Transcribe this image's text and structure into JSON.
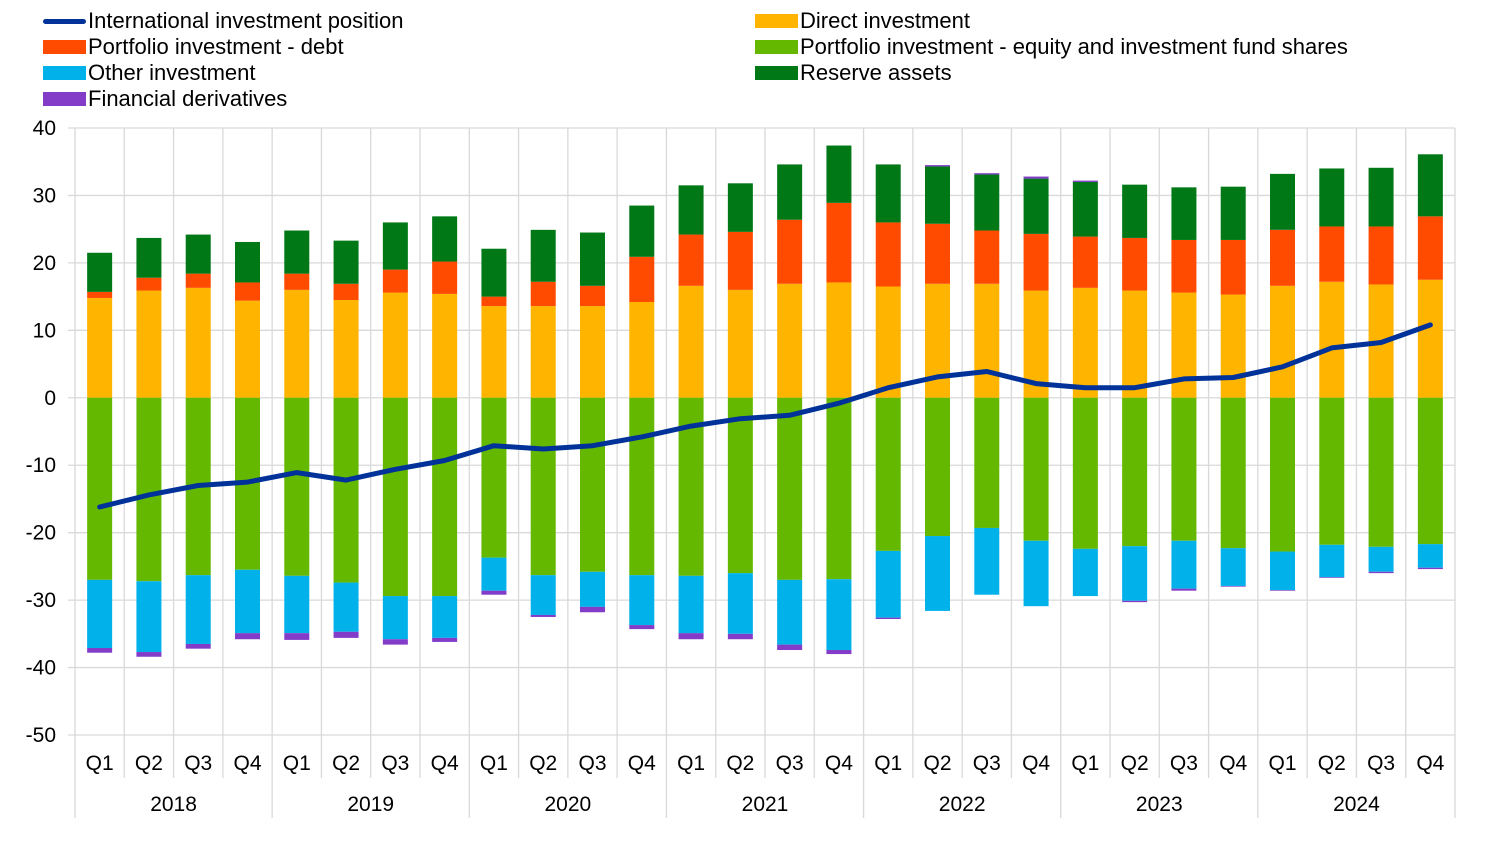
{
  "chart_data": {
    "type": "bar",
    "subtype": "stacked bar with line overlay",
    "title": "",
    "xlabel": "",
    "ylabel": "",
    "ylim": [
      -50,
      40
    ],
    "yticks": [
      40,
      30,
      20,
      10,
      0,
      -10,
      -20,
      -30,
      -40,
      -50
    ],
    "grid": true,
    "legend_position": "top",
    "quarter_labels": [
      "Q1",
      "Q2",
      "Q3",
      "Q4",
      "Q1",
      "Q2",
      "Q3",
      "Q4",
      "Q1",
      "Q2",
      "Q3",
      "Q4",
      "Q1",
      "Q2",
      "Q3",
      "Q4",
      "Q1",
      "Q2",
      "Q3",
      "Q4",
      "Q1",
      "Q2",
      "Q3",
      "Q4",
      "Q1",
      "Q2",
      "Q3",
      "Q4"
    ],
    "years": [
      "2018",
      "2019",
      "2020",
      "2021",
      "2022",
      "2023",
      "2024"
    ],
    "categories": [
      "2018 Q1",
      "2018 Q2",
      "2018 Q3",
      "2018 Q4",
      "2019 Q1",
      "2019 Q2",
      "2019 Q3",
      "2019 Q4",
      "2020 Q1",
      "2020 Q2",
      "2020 Q3",
      "2020 Q4",
      "2021 Q1",
      "2021 Q2",
      "2021 Q3",
      "2021 Q4",
      "2022 Q1",
      "2022 Q2",
      "2022 Q3",
      "2022 Q4",
      "2023 Q1",
      "2023 Q2",
      "2023 Q3",
      "2023 Q4",
      "2024 Q1",
      "2024 Q2",
      "2024 Q3",
      "2024 Q4"
    ],
    "series": [
      {
        "name": "Direct investment",
        "kind": "bar",
        "color": "#FFB400",
        "values": [
          14.8,
          15.9,
          16.3,
          14.4,
          16.0,
          14.5,
          15.6,
          15.4,
          13.6,
          13.6,
          13.6,
          14.2,
          16.6,
          16.0,
          16.9,
          17.1,
          16.5,
          16.9,
          16.9,
          15.9,
          16.3,
          15.9,
          15.6,
          15.3,
          16.6,
          17.2,
          16.8,
          17.5
        ]
      },
      {
        "name": "Portfolio investment - debt",
        "kind": "bar",
        "color": "#FF4B00",
        "values": [
          0.9,
          1.9,
          2.1,
          2.7,
          2.4,
          2.4,
          3.4,
          4.8,
          1.4,
          3.6,
          3.0,
          6.7,
          7.6,
          8.6,
          9.5,
          11.8,
          9.5,
          8.9,
          7.9,
          8.4,
          7.6,
          7.8,
          7.8,
          8.1,
          8.3,
          8.2,
          8.6,
          9.4
        ]
      },
      {
        "name": "Reserve assets",
        "kind": "bar",
        "color": "#007816",
        "values": [
          5.8,
          5.9,
          5.8,
          6.0,
          6.4,
          6.4,
          7.0,
          6.7,
          7.1,
          7.7,
          7.9,
          7.6,
          7.3,
          7.2,
          8.2,
          8.5,
          8.6,
          8.5,
          8.3,
          8.2,
          8.1,
          7.9,
          7.8,
          7.9,
          8.3,
          8.6,
          8.7,
          9.2
        ]
      },
      {
        "name": "Portfolio investment - equity and investment fund shares",
        "kind": "bar",
        "color": "#65B800",
        "values": [
          -27.0,
          -27.2,
          -26.3,
          -25.5,
          -26.4,
          -27.4,
          -29.4,
          -29.4,
          -23.7,
          -26.3,
          -25.8,
          -26.3,
          -26.4,
          -26.0,
          -27.0,
          -26.9,
          -22.7,
          -20.5,
          -19.3,
          -21.2,
          -22.4,
          -22.0,
          -21.2,
          -22.3,
          -22.8,
          -21.8,
          -22.1,
          -21.7
        ]
      },
      {
        "name": "Other investment",
        "kind": "bar",
        "color": "#00B1EA",
        "values": [
          -10.1,
          -10.5,
          -10.2,
          -9.4,
          -8.5,
          -7.3,
          -6.4,
          -6.2,
          -4.9,
          -5.9,
          -5.2,
          -7.4,
          -8.5,
          -9.0,
          -9.6,
          -10.5,
          -9.9,
          -11.1,
          -9.9,
          -9.7,
          -7.0,
          -8.1,
          -7.1,
          -5.6,
          -5.7,
          -4.8,
          -3.7,
          -3.5
        ]
      },
      {
        "name": "Financial derivatives",
        "kind": "bar",
        "color": "#823CC8",
        "values": [
          -0.7,
          -0.7,
          -0.7,
          -0.9,
          -1.0,
          -0.9,
          -0.8,
          -0.6,
          -0.6,
          -0.3,
          -0.8,
          -0.6,
          -0.9,
          -0.8,
          -0.8,
          -0.6,
          -0.2,
          0.2,
          0.2,
          0.3,
          0.2,
          -0.2,
          -0.3,
          -0.1,
          -0.1,
          -0.1,
          -0.2,
          -0.2
        ]
      },
      {
        "name": "International investment position",
        "kind": "line",
        "color": "#003299",
        "values": [
          -16.2,
          -14.4,
          -13.0,
          -12.5,
          -11.1,
          -12.2,
          -10.6,
          -9.3,
          -7.1,
          -7.6,
          -7.1,
          -5.8,
          -4.2,
          -3.1,
          -2.6,
          -0.8,
          1.5,
          3.1,
          3.9,
          2.1,
          1.5,
          1.5,
          2.8,
          3.0,
          4.6,
          7.4,
          8.2,
          10.8
        ]
      }
    ]
  },
  "legend": {
    "items": [
      {
        "label": "International investment position",
        "color": "#003299",
        "kind": "line"
      },
      {
        "label": "Direct investment",
        "color": "#FFB400",
        "kind": "box"
      },
      {
        "label": "Portfolio investment - debt",
        "color": "#FF4B00",
        "kind": "box"
      },
      {
        "label": "Portfolio investment - equity and investment fund shares",
        "color": "#65B800",
        "kind": "box"
      },
      {
        "label": "Other investment",
        "color": "#00B1EA",
        "kind": "box"
      },
      {
        "label": "Reserve assets",
        "color": "#007816",
        "kind": "box"
      },
      {
        "label": "Financial derivatives",
        "color": "#823CC8",
        "kind": "box"
      }
    ]
  },
  "colors": {
    "grid": "#D9D9D9",
    "text": "#000000"
  }
}
